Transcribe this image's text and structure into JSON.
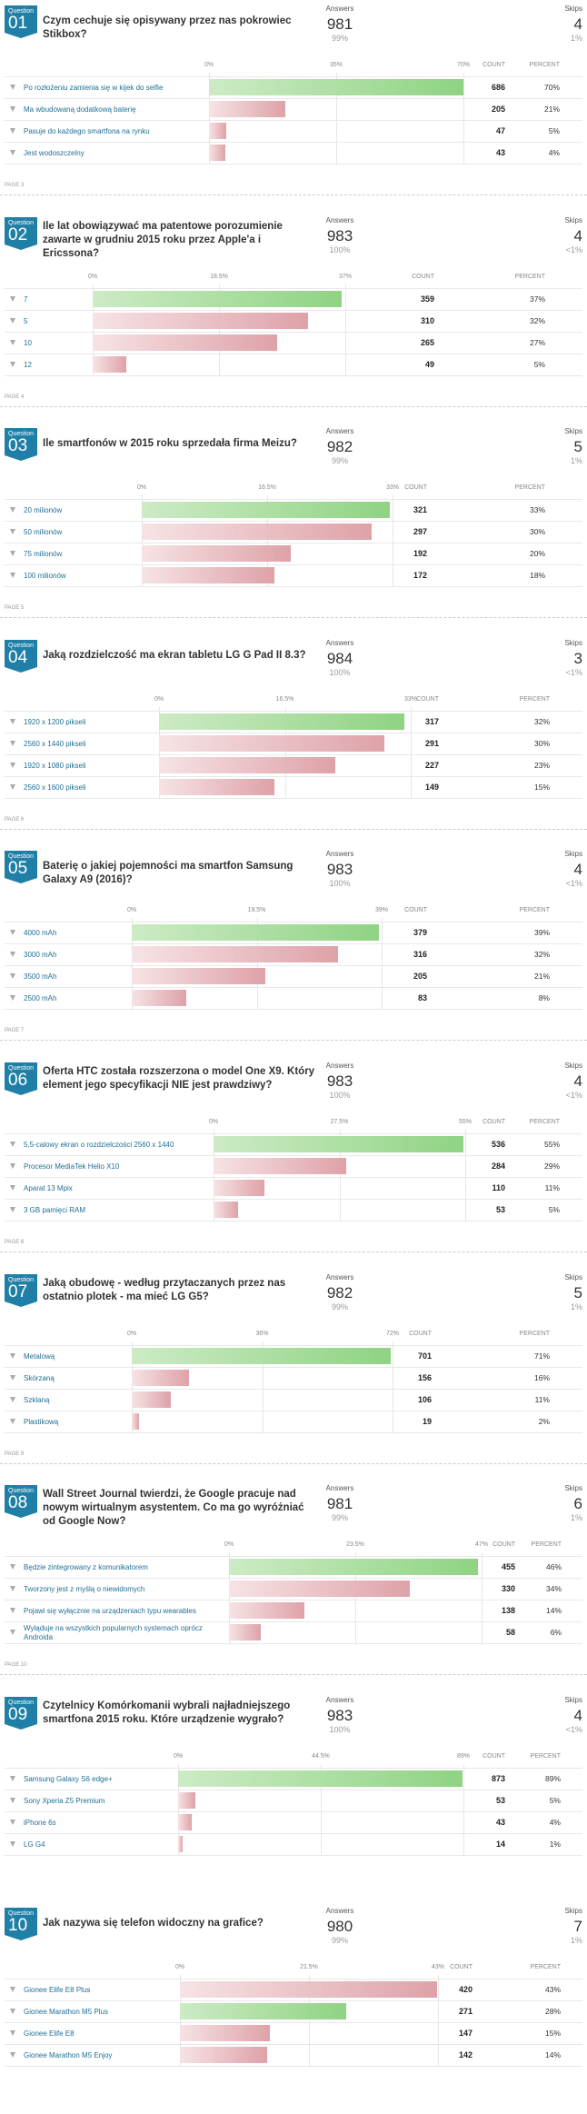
{
  "labels": {
    "question": "Question",
    "answers": "Answers",
    "skips": "Skips",
    "count": "COUNT",
    "percent": "PERCENT"
  },
  "questions": [
    {
      "number": "01",
      "title": "Czym cechuje się opisywany przez nas pokrowiec Stikbox?",
      "answers": 981,
      "answers_pct": "99%",
      "skips": 4,
      "skips_pct": "1%",
      "xticks": [
        {
          "value": 0,
          "label": "0%"
        },
        {
          "value": 35,
          "label": "35%"
        },
        {
          "value": 70,
          "label": "70%"
        }
      ],
      "rows": [
        {
          "label": "Po rozłożeniu zamienia się w kijek do selfie",
          "count": 686,
          "percent": "70%",
          "color": "green"
        },
        {
          "label": "Ma wbudowaną dodatkową baterię",
          "count": 205,
          "percent": "21%",
          "color": "red"
        },
        {
          "label": "Pasuje do każdego smartfona na rynku",
          "count": 47,
          "percent": "5%",
          "color": "red"
        },
        {
          "label": "Jest wodoszczelny",
          "count": 43,
          "percent": "4%",
          "color": "red"
        }
      ],
      "page": "PAGE 3"
    },
    {
      "number": "02",
      "title": "Ile lat obowiązywać ma patentowe porozumienie zawarte w grudniu 2015 roku przez Apple'a i Ericssona?",
      "answers": 983,
      "answers_pct": "100%",
      "skips": 4,
      "skips_pct": "<1%",
      "xticks": [
        {
          "value": 0,
          "label": "0%"
        },
        {
          "value": 18.5,
          "label": "18.5%"
        },
        {
          "value": 37,
          "label": "37%"
        }
      ],
      "rows": [
        {
          "label": "7",
          "count": 359,
          "percent": "37%",
          "color": "green"
        },
        {
          "label": "5",
          "count": 310,
          "percent": "32%",
          "color": "red"
        },
        {
          "label": "10",
          "count": 265,
          "percent": "27%",
          "color": "red"
        },
        {
          "label": "12",
          "count": 49,
          "percent": "5%",
          "color": "red"
        }
      ],
      "page": "PAGE 4"
    },
    {
      "number": "03",
      "title": "Ile smartfonów w 2015 roku sprzedała firma Meizu?",
      "answers": 982,
      "answers_pct": "99%",
      "skips": 5,
      "skips_pct": "1%",
      "xticks": [
        {
          "value": 0,
          "label": "0%"
        },
        {
          "value": 16.5,
          "label": "16.5%"
        },
        {
          "value": 33,
          "label": "33%"
        }
      ],
      "rows": [
        {
          "label": "20 milionów",
          "count": 321,
          "percent": "33%",
          "color": "green"
        },
        {
          "label": "50 milionów",
          "count": 297,
          "percent": "30%",
          "color": "red"
        },
        {
          "label": "75 milionów",
          "count": 192,
          "percent": "20%",
          "color": "red"
        },
        {
          "label": "100 milionów",
          "count": 172,
          "percent": "18%",
          "color": "red"
        }
      ],
      "page": "PAGE 5"
    },
    {
      "number": "04",
      "title": "Jaką rozdzielczość ma ekran tabletu LG G Pad II 8.3?",
      "answers": 984,
      "answers_pct": "100%",
      "skips": 3,
      "skips_pct": "<1%",
      "xticks": [
        {
          "value": 0,
          "label": "0%"
        },
        {
          "value": 16.5,
          "label": "16.5%"
        },
        {
          "value": 33,
          "label": "33%"
        }
      ],
      "rows": [
        {
          "label": "1920 x 1200 pikseli",
          "count": 317,
          "percent": "32%",
          "color": "green"
        },
        {
          "label": "2560 x 1440 pikseli",
          "count": 291,
          "percent": "30%",
          "color": "red"
        },
        {
          "label": "1920 x 1080 pikseli",
          "count": 227,
          "percent": "23%",
          "color": "red"
        },
        {
          "label": "2560 x 1600 pikseli",
          "count": 149,
          "percent": "15%",
          "color": "red"
        }
      ],
      "page": "PAGE 6"
    },
    {
      "number": "05",
      "title": "Baterię o jakiej pojemności ma smartfon Samsung Galaxy A9 (2016)?",
      "answers": 983,
      "answers_pct": "100%",
      "skips": 4,
      "skips_pct": "<1%",
      "xticks": [
        {
          "value": 0,
          "label": "0%"
        },
        {
          "value": 19.5,
          "label": "19.5%"
        },
        {
          "value": 39,
          "label": "39%"
        }
      ],
      "rows": [
        {
          "label": "4000 mAh",
          "count": 379,
          "percent": "39%",
          "color": "green"
        },
        {
          "label": "3000 mAh",
          "count": 316,
          "percent": "32%",
          "color": "red"
        },
        {
          "label": "3500 mAh",
          "count": 205,
          "percent": "21%",
          "color": "red"
        },
        {
          "label": "2500 mAh",
          "count": 83,
          "percent": "8%",
          "color": "red"
        }
      ],
      "page": "PAGE 7"
    },
    {
      "number": "06",
      "title": "Oferta HTC została rozszerzona o model One X9. Który element jego specyfikacji NIE jest prawdziwy?",
      "answers": 983,
      "answers_pct": "100%",
      "skips": 4,
      "skips_pct": "<1%",
      "xticks": [
        {
          "value": 0,
          "label": "0%"
        },
        {
          "value": 27.5,
          "label": "27.5%"
        },
        {
          "value": 55,
          "label": "55%"
        }
      ],
      "rows": [
        {
          "label": "5,5-calowy ekran o rozdzielczości 2560 x 1440",
          "count": 536,
          "percent": "55%",
          "color": "green"
        },
        {
          "label": "Procesor MediaTek Helio X10",
          "count": 284,
          "percent": "29%",
          "color": "red"
        },
        {
          "label": "Aparat 13 Mpix",
          "count": 110,
          "percent": "11%",
          "color": "red"
        },
        {
          "label": "3 GB pamięci RAM",
          "count": 53,
          "percent": "5%",
          "color": "red"
        }
      ],
      "page": "PAGE 8"
    },
    {
      "number": "07",
      "title": "Jaką obudowę - według przytaczanych przez nas ostatnio plotek - ma mieć LG G5?",
      "answers": 982,
      "answers_pct": "99%",
      "skips": 5,
      "skips_pct": "1%",
      "xticks": [
        {
          "value": 0,
          "label": "0%"
        },
        {
          "value": 36,
          "label": "36%"
        },
        {
          "value": 72,
          "label": "72%"
        }
      ],
      "rows": [
        {
          "label": "Metalową",
          "count": 701,
          "percent": "71%",
          "color": "green"
        },
        {
          "label": "Skórzaną",
          "count": 156,
          "percent": "16%",
          "color": "red"
        },
        {
          "label": "Szklaną",
          "count": 106,
          "percent": "11%",
          "color": "red"
        },
        {
          "label": "Plastikową",
          "count": 19,
          "percent": "2%",
          "color": "red"
        }
      ],
      "page": "PAGE 9"
    },
    {
      "number": "08",
      "title": "Wall Street Journal twierdzi, że Google pracuje nad nowym wirtualnym asystentem. Co ma go wyróżniać od Google Now?",
      "answers": 981,
      "answers_pct": "99%",
      "skips": 6,
      "skips_pct": "1%",
      "xticks": [
        {
          "value": 0,
          "label": "0%"
        },
        {
          "value": 23.5,
          "label": "23.5%"
        },
        {
          "value": 47,
          "label": "47%"
        }
      ],
      "rows": [
        {
          "label": "Będzie zintegrowany z komunikatorem",
          "count": 455,
          "percent": "46%",
          "color": "green"
        },
        {
          "label": "Tworzony jest z myślą o niewidomych",
          "count": 330,
          "percent": "34%",
          "color": "red"
        },
        {
          "label": "Pojawi się wyłącznie na urządzeniach typu wearables",
          "count": 138,
          "percent": "14%",
          "color": "red"
        },
        {
          "label": "Wyląduje na wszystkich popularnych systemach oprócz Androida",
          "count": 58,
          "percent": "6%",
          "color": "red"
        }
      ],
      "page": "PAGE 10"
    },
    {
      "number": "09",
      "title": "Czytelnicy Komórkomanii wybrali najładniejszego smartfona 2015 roku. Które urządzenie wygrało?",
      "answers": 983,
      "answers_pct": "100%",
      "skips": 4,
      "skips_pct": "<1%",
      "xticks": [
        {
          "value": 0,
          "label": "0%"
        },
        {
          "value": 44.5,
          "label": "44.5%"
        },
        {
          "value": 89,
          "label": "89%"
        }
      ],
      "rows": [
        {
          "label": "Samsung Galaxy S6 edge+",
          "count": 873,
          "percent": "89%",
          "color": "green"
        },
        {
          "label": "Sony Xperia Z5 Premium",
          "count": 53,
          "percent": "5%",
          "color": "red"
        },
        {
          "label": "iPhone 6s",
          "count": 43,
          "percent": "4%",
          "color": "red"
        },
        {
          "label": "LG G4",
          "count": 14,
          "percent": "1%",
          "color": "red"
        }
      ]
    },
    {
      "number": "10",
      "title": "Jak nazywa się telefon widoczny na grafice?",
      "answers": 980,
      "answers_pct": "99%",
      "skips": 7,
      "skips_pct": "1%",
      "xticks": [
        {
          "value": 0,
          "label": "0%"
        },
        {
          "value": 21.5,
          "label": "21.5%"
        },
        {
          "value": 43,
          "label": "43%"
        }
      ],
      "rows": [
        {
          "label": "Gionee Elife E8 Plus",
          "count": 420,
          "percent": "43%",
          "color": "red"
        },
        {
          "label": "Gionee Marathon M5 Plus",
          "count": 271,
          "percent": "28%",
          "color": "green"
        },
        {
          "label": "Gionee Elife E8",
          "count": 147,
          "percent": "15%",
          "color": "red"
        },
        {
          "label": "Gionee Marathon M5 Enjoy",
          "count": 142,
          "percent": "14%",
          "color": "red"
        }
      ]
    }
  ]
}
